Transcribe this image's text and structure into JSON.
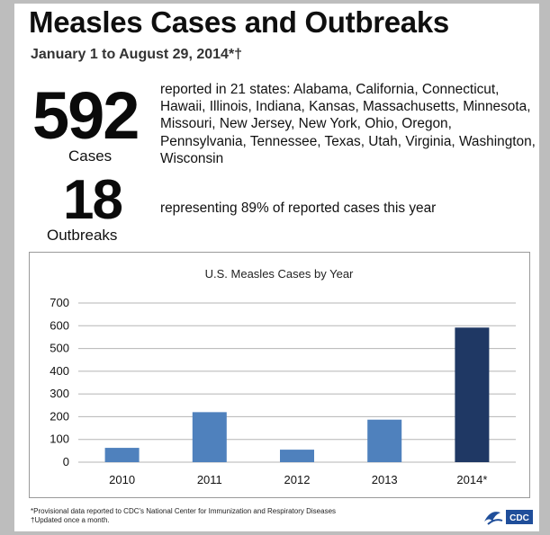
{
  "header": {
    "title": "Measles Cases and Outbreaks",
    "subtitle": "January 1 to August 29, 2014*†"
  },
  "stats": {
    "cases_number": "592",
    "cases_label": "Cases",
    "cases_description": "reported in 21 states: Alabama, California, Connecticut, Hawaii, Illinois, Indiana, Kansas, Massachusetts, Minnesota, Missouri, New Jersey, New York, Ohio, Oregon, Pennsylvania, Tennessee, Texas, Utah, Virginia, Washington, Wisconsin",
    "outbreaks_number": "18",
    "outbreaks_label": "Outbreaks",
    "outbreaks_description": "representing 89% of reported cases this year"
  },
  "chart_data": {
    "type": "bar",
    "title": "U.S. Measles Cases by Year",
    "categories": [
      "2010",
      "2011",
      "2012",
      "2013",
      "2014*"
    ],
    "values": [
      63,
      220,
      55,
      187,
      592
    ],
    "bar_colors": [
      "#4f81bd",
      "#4f81bd",
      "#4f81bd",
      "#4f81bd",
      "#1f3864"
    ],
    "ylim": [
      0,
      700
    ],
    "yticks": [
      0,
      100,
      200,
      300,
      400,
      500,
      600,
      700
    ],
    "grid": true,
    "xlabel": "",
    "ylabel": ""
  },
  "footnotes": {
    "line1": "*Provisional data reported to CDC's National Center for Immunization and Respiratory Diseases",
    "line2": "†Updated once a month."
  },
  "logo": {
    "text": "CDC",
    "icon": "hhs-eagle-icon",
    "color": "#1f4e9a"
  }
}
